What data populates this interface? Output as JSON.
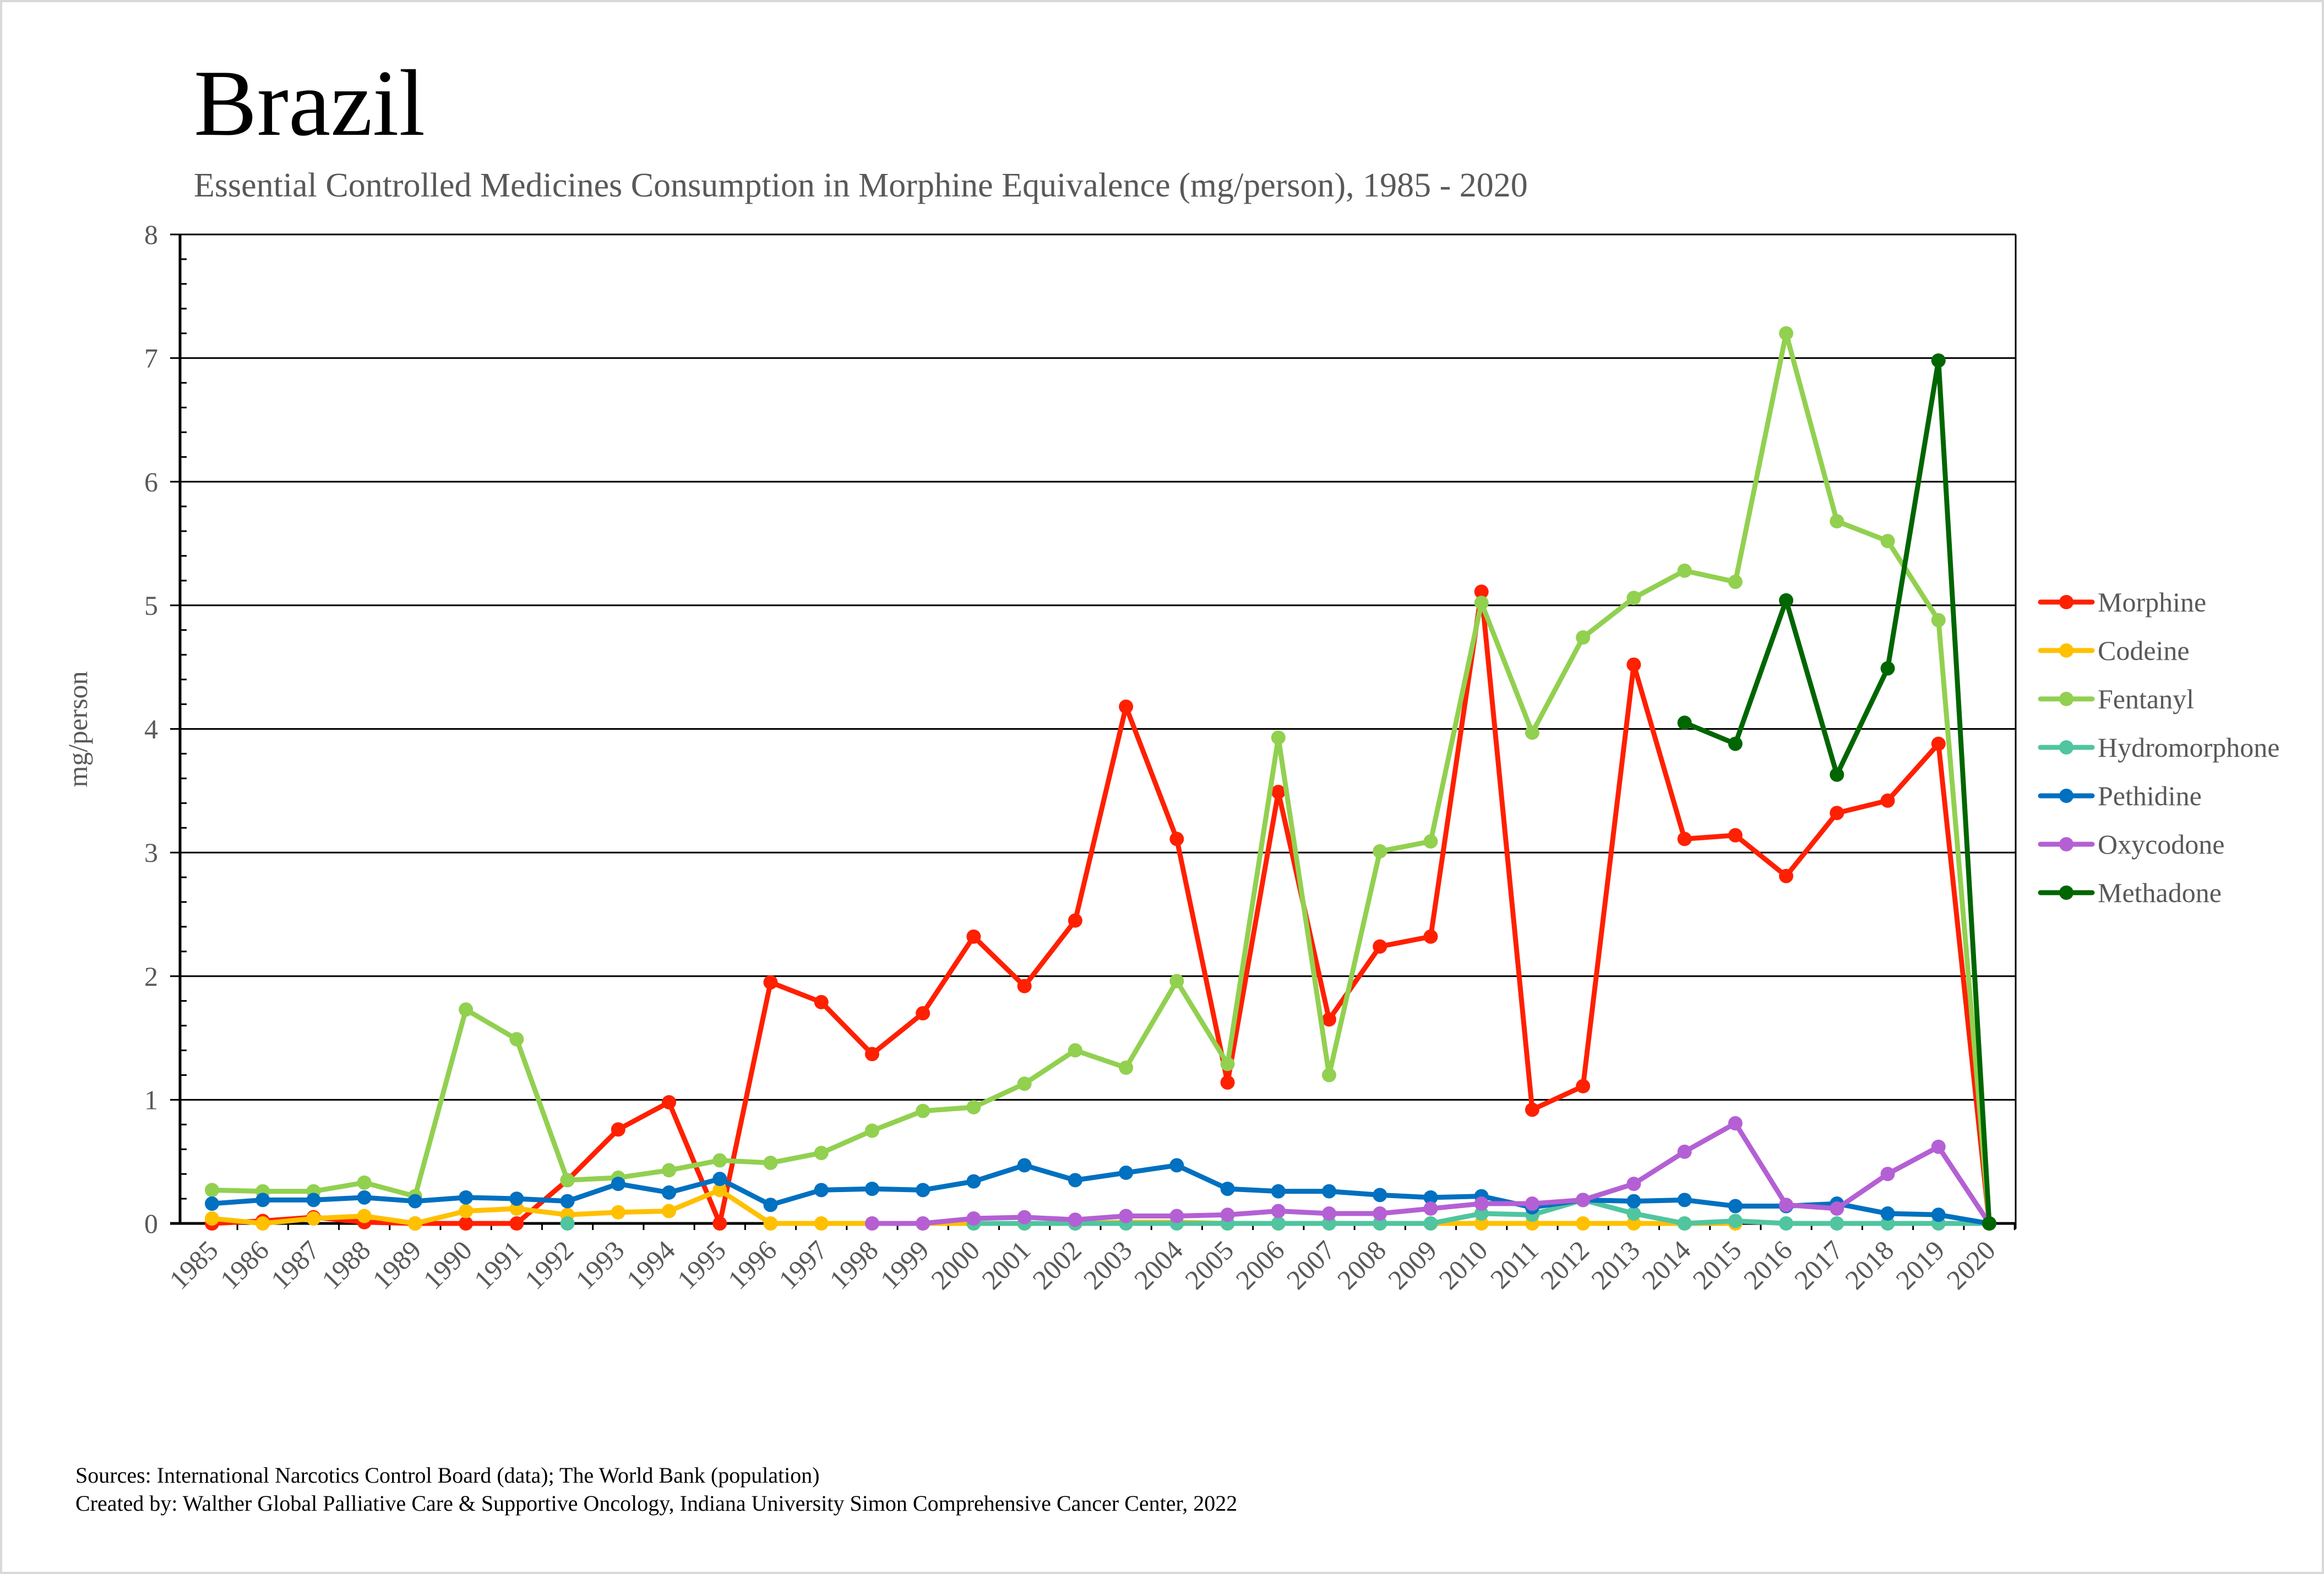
{
  "header": {
    "title": "Brazil",
    "subtitle": "Essential Controlled Medicines Consumption in Morphine Equivalence (mg/person), 1985 - 2020"
  },
  "footer": {
    "sources": "Sources: International Narcotics Control Board (data); The World Bank (population)",
    "created_by": "Created by: Walther Global Palliative Care & Supportive Oncology, Indiana University Simon Comprehensive Cancer Center, 2022"
  },
  "chart_data": {
    "type": "line",
    "title": "Brazil",
    "subtitle": "Essential Controlled Medicines Consumption in Morphine Equivalence (mg/person), 1985 - 2020",
    "xlabel": "",
    "ylabel": "mg/person",
    "ylim": [
      0,
      8
    ],
    "yticks": [
      "0",
      "1",
      "2",
      "3",
      "4",
      "5",
      "6",
      "7",
      "8"
    ],
    "y_minor_step": 0.2,
    "grid": true,
    "legend_position": "right",
    "categories": [
      "1985",
      "1986",
      "1987",
      "1988",
      "1989",
      "1990",
      "1991",
      "1992",
      "1993",
      "1994",
      "1995",
      "1996",
      "1997",
      "1998",
      "1999",
      "2000",
      "2001",
      "2002",
      "2003",
      "2004",
      "2005",
      "2006",
      "2007",
      "2008",
      "2009",
      "2010",
      "2011",
      "2012",
      "2013",
      "2014",
      "2015",
      "2016",
      "2017",
      "2018",
      "2019",
      "2020"
    ],
    "series": [
      {
        "name": "Morphine",
        "color": "#FF2000",
        "values": [
          0,
          0.02,
          0.05,
          0.01,
          0,
          0,
          0,
          0.35,
          0.76,
          0.98,
          0,
          1.95,
          1.79,
          1.37,
          1.7,
          2.32,
          1.92,
          2.45,
          4.18,
          3.11,
          1.14,
          3.49,
          1.65,
          2.24,
          2.32,
          5.11,
          0.92,
          1.11,
          4.52,
          3.11,
          3.14,
          2.81,
          3.32,
          3.42,
          3.88,
          0
        ]
      },
      {
        "name": "Codeine",
        "color": "#FFC000",
        "values": [
          0.04,
          0.0,
          0.04,
          0.06,
          0.0,
          0.1,
          0.12,
          0.07,
          0.09,
          0.1,
          0.27,
          0,
          0,
          0,
          0,
          0,
          0,
          0,
          0.01,
          0.01,
          0,
          0,
          0,
          0,
          0,
          0,
          0,
          0,
          0,
          0,
          0,
          null,
          null,
          null,
          null,
          null
        ]
      },
      {
        "name": "Fentanyl",
        "color": "#92D050",
        "values": [
          0.27,
          0.26,
          0.26,
          0.33,
          0.22,
          1.73,
          1.49,
          0.35,
          0.37,
          0.43,
          0.51,
          0.49,
          0.57,
          0.75,
          0.91,
          0.94,
          1.13,
          1.4,
          1.26,
          1.96,
          1.29,
          3.93,
          1.2,
          3.01,
          3.09,
          5.02,
          3.97,
          4.74,
          5.06,
          5.28,
          5.19,
          7.2,
          5.68,
          5.52,
          4.88,
          0
        ]
      },
      {
        "name": "Hydromorphone",
        "color": "#50C5A0",
        "values": [
          null,
          null,
          null,
          null,
          null,
          null,
          null,
          0,
          null,
          null,
          null,
          null,
          null,
          null,
          null,
          0,
          0,
          0,
          0,
          0,
          0,
          0,
          0,
          0,
          0,
          0.08,
          0.07,
          0.19,
          0.08,
          0,
          0.02,
          0,
          0,
          0,
          0,
          0
        ]
      },
      {
        "name": "Pethidine",
        "color": "#0070C0",
        "values": [
          0.16,
          0.19,
          0.19,
          0.21,
          0.18,
          0.21,
          0.2,
          0.18,
          0.32,
          0.25,
          0.36,
          0.15,
          0.27,
          0.28,
          0.27,
          0.34,
          0.47,
          0.35,
          0.41,
          0.47,
          0.28,
          0.26,
          0.26,
          0.23,
          0.21,
          0.22,
          0.13,
          0.19,
          0.18,
          0.19,
          0.14,
          0.14,
          0.16,
          0.08,
          0.07,
          0
        ]
      },
      {
        "name": "Oxycodone",
        "color": "#B460D4",
        "values": [
          null,
          null,
          null,
          null,
          null,
          null,
          null,
          null,
          null,
          null,
          null,
          null,
          null,
          0,
          0,
          0.04,
          0.05,
          0.03,
          0.06,
          0.06,
          0.07,
          0.1,
          0.08,
          0.08,
          0.12,
          0.16,
          0.16,
          0.19,
          0.32,
          0.58,
          0.81,
          0.15,
          0.12,
          0.4,
          0.62,
          0
        ]
      },
      {
        "name": "Methadone",
        "color": "#006600",
        "values": [
          null,
          null,
          null,
          null,
          null,
          null,
          null,
          null,
          null,
          null,
          null,
          null,
          null,
          null,
          null,
          null,
          null,
          null,
          null,
          null,
          null,
          null,
          null,
          null,
          null,
          null,
          null,
          null,
          null,
          4.05,
          3.88,
          5.04,
          3.63,
          4.49,
          6.98,
          0
        ]
      }
    ]
  }
}
